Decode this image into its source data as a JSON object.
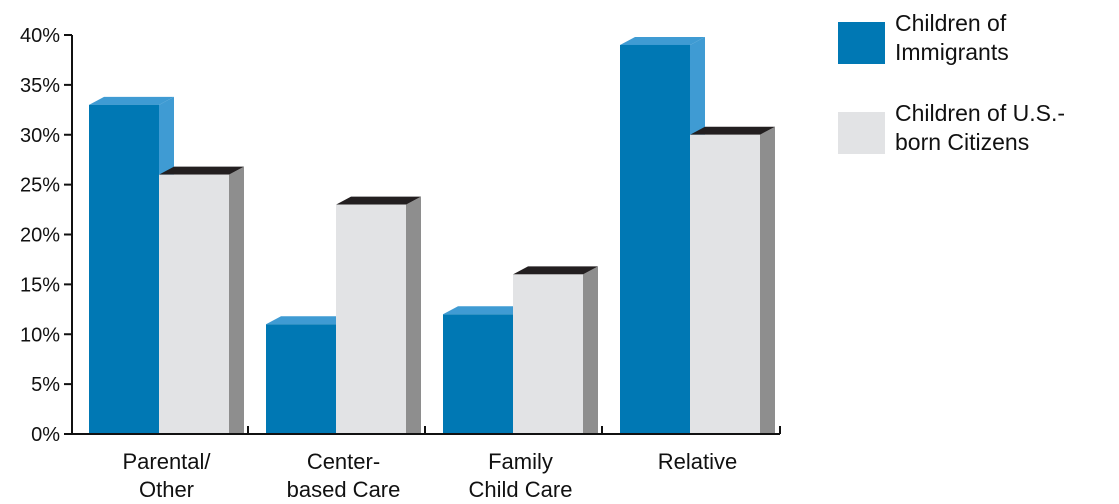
{
  "chart_data": {
    "type": "bar",
    "categories": [
      [
        "Parental/",
        "Other"
      ],
      [
        "Center-",
        "based Care"
      ],
      [
        "Family",
        "Child Care"
      ],
      [
        "Relative"
      ]
    ],
    "series": [
      {
        "name": [
          "Children of",
          "Immigrants"
        ],
        "values": [
          33,
          11,
          12,
          39
        ],
        "color": "#0078b4",
        "side_color": "#3f9bd3",
        "top_color": "#3f9bd3"
      },
      {
        "name": [
          "Children of U.S.-",
          "born Citizens"
        ],
        "values": [
          26,
          23,
          16,
          30
        ],
        "color": "#e2e3e5",
        "side_color": "#8e8e8e",
        "top_color": "#231f20"
      }
    ],
    "y_ticks": [
      "0%",
      "5%",
      "10%",
      "15%",
      "20%",
      "25%",
      "30%",
      "35%",
      "40%"
    ],
    "ylim": [
      0,
      40
    ],
    "ystep": 5,
    "legend_position": "top-right",
    "grid": false
  }
}
